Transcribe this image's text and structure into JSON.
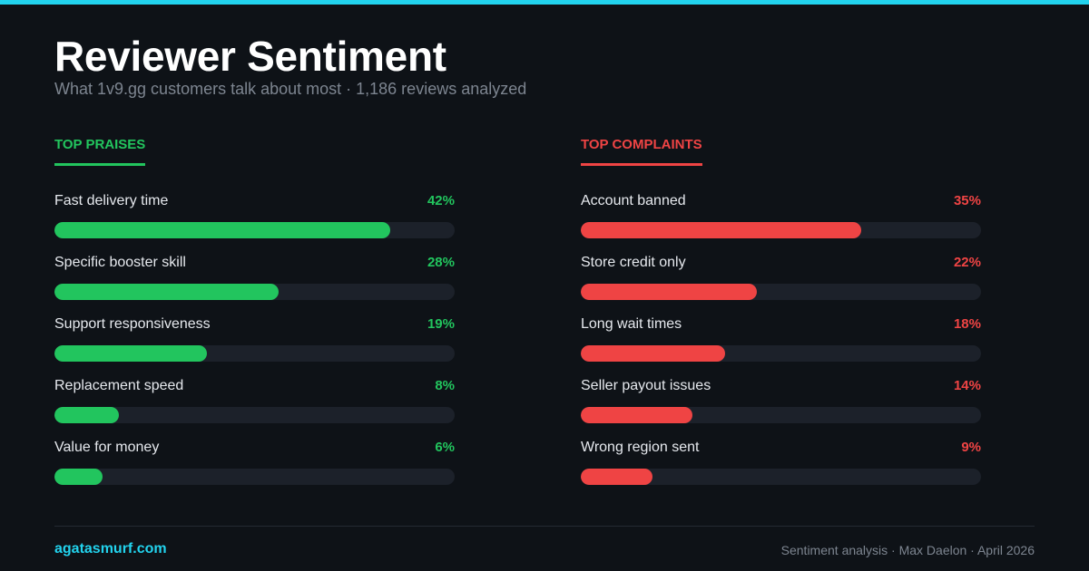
{
  "header": {
    "title": "Reviewer Sentiment",
    "subtitle": "What 1v9.gg customers talk about most · 1,186 reviews analyzed"
  },
  "colors": {
    "accent": "#22d3ee",
    "praise": "#22c55e",
    "complaint": "#ef4444"
  },
  "chart_data": [
    {
      "type": "bar",
      "orientation": "horizontal",
      "title": "TOP PRAISES",
      "categories": [
        "Fast delivery time",
        "Specific booster skill",
        "Support responsiveness",
        "Replacement speed",
        "Value for money"
      ],
      "values": [
        42,
        28,
        19,
        8,
        6
      ],
      "value_labels": [
        "42%",
        "28%",
        "19%",
        "8%",
        "6%"
      ],
      "unit": "%",
      "xlim": [
        0,
        50
      ],
      "grid": false,
      "color": "#22c55e"
    },
    {
      "type": "bar",
      "orientation": "horizontal",
      "title": "TOP COMPLAINTS",
      "categories": [
        "Account banned",
        "Store credit only",
        "Long wait times",
        "Seller payout issues",
        "Wrong region sent"
      ],
      "values": [
        35,
        22,
        18,
        14,
        9
      ],
      "value_labels": [
        "35%",
        "22%",
        "18%",
        "14%",
        "9%"
      ],
      "unit": "%",
      "xlim": [
        0,
        50
      ],
      "grid": false,
      "color": "#ef4444"
    }
  ],
  "footer": {
    "brand": "agatasmurf.com",
    "credit": "Sentiment analysis · Max Daelon · April 2026"
  }
}
